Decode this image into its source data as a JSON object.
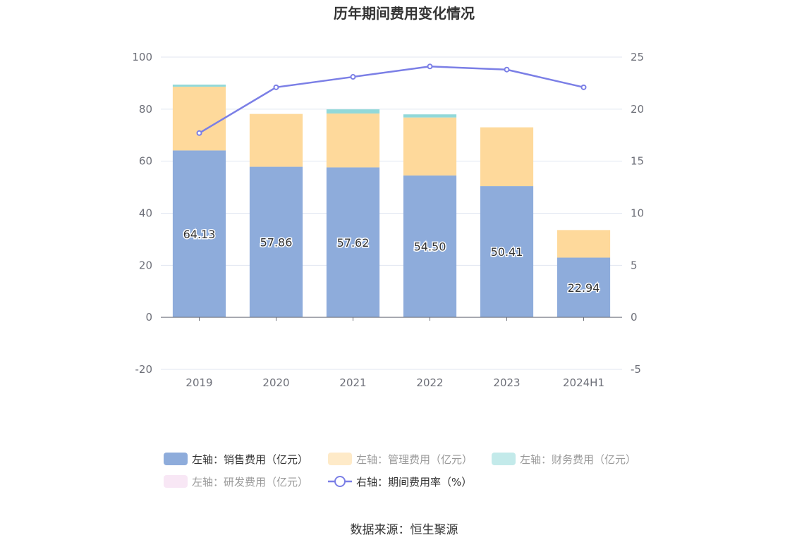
{
  "chart_data": {
    "type": "bar",
    "title": "历年期间费用变化情况",
    "categories": [
      "2019",
      "2020",
      "2021",
      "2022",
      "2023",
      "2024H1"
    ],
    "series": [
      {
        "name": "左轴：销售费用（亿元）",
        "axis": "left",
        "stack": "cost",
        "color": "#8eacdb",
        "values": [
          64.13,
          57.86,
          57.62,
          54.5,
          50.41,
          22.94
        ]
      },
      {
        "name": "左轴：管理费用（亿元）",
        "axis": "left",
        "stack": "cost",
        "color": "#fed99b",
        "values": [
          24.5,
          20.3,
          20.7,
          22.3,
          22.6,
          10.6
        ]
      },
      {
        "name": "左轴：财务费用（亿元）",
        "axis": "left",
        "stack": "cost",
        "color": "#92d9d9",
        "values": [
          0.8,
          0.0,
          1.6,
          1.2,
          0.0,
          0.0
        ]
      },
      {
        "name": "左轴：研发费用（亿元）",
        "axis": "left",
        "stack": "cost",
        "color": "#f2d4ec",
        "values": [
          0,
          0,
          0,
          0,
          0,
          0
        ]
      },
      {
        "name": "右轴：期间费用率（%）",
        "axis": "right",
        "type": "line",
        "color": "#7b7fe6",
        "values": [
          17.7,
          22.1,
          23.1,
          24.1,
          23.8,
          22.1
        ]
      }
    ],
    "data_labels": [
      "64.13",
      "57.86",
      "57.62",
      "54.50",
      "50.41",
      "22.94"
    ],
    "y_left": {
      "ticks": [
        "100",
        "80",
        "60",
        "40",
        "20",
        "0",
        "-20"
      ],
      "min": -20,
      "max": 100
    },
    "y_right": {
      "ticks": [
        "25",
        "20",
        "15",
        "10",
        "5",
        "0",
        "-5"
      ],
      "min": -5,
      "max": 25
    },
    "grid": true,
    "legend_position": "bottom",
    "legend_dimmed": [
      false,
      true,
      true,
      true,
      false
    ]
  },
  "source": "数据来源：恒生聚源"
}
